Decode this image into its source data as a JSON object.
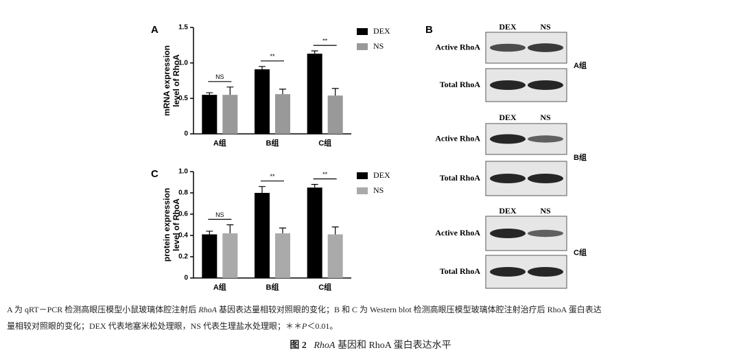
{
  "chart_data": [
    {
      "type": "bar",
      "panel": "A",
      "ylabel": [
        "mRNA expression",
        "level of RhoA"
      ],
      "categories": [
        "A组",
        "B组",
        "C组"
      ],
      "series": [
        {
          "name": "DEX",
          "color": "#000000",
          "values": [
            0.55,
            0.91,
            1.13
          ],
          "errors": [
            0.03,
            0.04,
            0.04
          ]
        },
        {
          "name": "NS",
          "color": "#999999",
          "values": [
            0.55,
            0.56,
            0.54
          ],
          "errors": [
            0.11,
            0.07,
            0.1
          ]
        }
      ],
      "annotations": [
        "NS",
        "**",
        "**"
      ],
      "ylim": [
        0,
        1.5
      ],
      "yticks": [
        0,
        0.5,
        {
          "value": 1,
          "label": "1.0"
        },
        1.5
      ],
      "legend": "right"
    },
    {
      "type": "bar",
      "panel": "C",
      "ylabel": [
        "protein expression",
        "level of RhoA"
      ],
      "categories": [
        "A组",
        "B组",
        "C组"
      ],
      "series": [
        {
          "name": "DEX",
          "color": "#000000",
          "values": [
            0.41,
            0.8,
            0.85
          ],
          "errors": [
            0.03,
            0.06,
            0.03
          ]
        },
        {
          "name": "NS",
          "color": "#aaaaaa",
          "values": [
            0.42,
            0.42,
            0.41
          ],
          "errors": [
            0.08,
            0.05,
            0.07
          ]
        }
      ],
      "annotations": [
        "NS",
        "**",
        "**"
      ],
      "ylim": [
        0,
        1.0
      ],
      "yticks": [
        0,
        0.2,
        0.4,
        0.6,
        0.8,
        {
          "value": 1,
          "label": "1.0"
        }
      ],
      "legend": "right"
    }
  ],
  "blot": {
    "panel": "B",
    "columns": [
      "DEX",
      "NS"
    ],
    "rows": [
      "Active RhoA",
      "Total RhoA"
    ],
    "groups": [
      "A组",
      "B组",
      "C组"
    ]
  },
  "caption": [
    "A 为 qRT－PCR 检测高眼压模型小鼠玻璃体腔注射后 ",
    "RhoA",
    " 基因表达量相较对照眼的变化；B 和 C 为 Western blot 检测高眼压模型玻璃体腔注射治疗后 RhoA 蛋白表达",
    "量相较对照眼的变化；DEX 代表地塞米松处理眼，NS 代表生理盐水处理眼；＊＊",
    "P",
    "＜0.01。"
  ],
  "figure_title": {
    "number": "图 2",
    "gene": "RhoA",
    "rest": "基因和 RhoA 蛋白表达水平"
  }
}
